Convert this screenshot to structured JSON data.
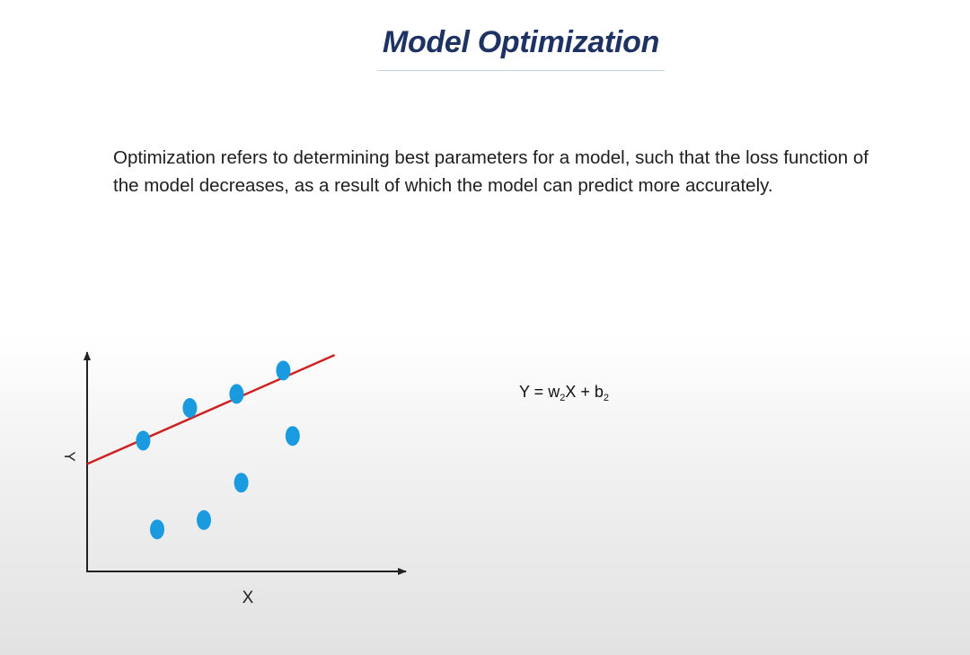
{
  "slide": {
    "title": "Model Optimization",
    "body": "Optimization refers to determining best parameters for a model, such that the loss function of the model decreases, as a result of which the model can predict more accurately."
  },
  "formula": {
    "lhs": "Y = w",
    "w_sub": "2",
    "mid": "X + b",
    "b_sub": "2"
  },
  "plot": {
    "x_label": "X",
    "y_label": "Y",
    "line_color": "#cc2222",
    "point_color": "#1a9be0",
    "axis_color": "#222222",
    "fit_line": {
      "y_at_x0": 2.3,
      "slope": 0.44
    },
    "points": [
      {
        "x": 1.2,
        "y": 2.8
      },
      {
        "x": 1.5,
        "y": 0.9
      },
      {
        "x": 2.2,
        "y": 3.5
      },
      {
        "x": 2.5,
        "y": 1.1
      },
      {
        "x": 3.2,
        "y": 3.8
      },
      {
        "x": 3.3,
        "y": 1.9
      },
      {
        "x": 4.2,
        "y": 4.3
      },
      {
        "x": 4.4,
        "y": 2.9
      }
    ]
  }
}
